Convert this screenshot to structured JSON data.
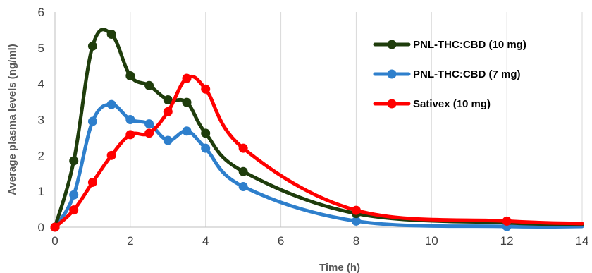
{
  "chart_data": {
    "type": "line",
    "title": "",
    "xlabel": "Time (h)",
    "ylabel": "Average plasma levels (ng/ml)",
    "xlim": [
      0,
      14
    ],
    "ylim": [
      0,
      6
    ],
    "xticks": [
      "0",
      "2",
      "4",
      "6",
      "8",
      "10",
      "12",
      "14"
    ],
    "yticks": [
      "0",
      "1",
      "2",
      "3",
      "4",
      "5",
      "6"
    ],
    "grid": "vertical",
    "legend": "top-right",
    "series": [
      {
        "name": "PNL-THC:CBD (10 mg)",
        "color": "#1f3d0c",
        "x": [
          0,
          0.5,
          1,
          1.5,
          2,
          2.5,
          3,
          3.5,
          4,
          5,
          8,
          12,
          14
        ],
        "y": [
          0,
          1.85,
          5.05,
          5.38,
          4.22,
          3.95,
          3.55,
          3.48,
          2.62,
          1.55,
          0.38,
          0.12,
          0.08
        ],
        "markers": [
          0,
          1,
          2,
          3,
          4,
          5,
          6,
          7,
          8,
          9,
          10
        ]
      },
      {
        "name": "PNL-THC:CBD (7 mg)",
        "color": "#2e7fcc",
        "x": [
          0,
          0.5,
          1,
          1.5,
          2,
          2.5,
          3,
          3.5,
          4,
          5,
          8,
          12,
          14
        ],
        "y": [
          0,
          0.9,
          2.95,
          3.42,
          3.0,
          2.88,
          2.42,
          2.68,
          2.2,
          1.13,
          0.17,
          0.02,
          0.02
        ],
        "markers": [
          0,
          1,
          2,
          3,
          4,
          5,
          6,
          7,
          8,
          9,
          10,
          11
        ]
      },
      {
        "name": "Sativex (10 mg)",
        "color": "#ff0000",
        "x": [
          0,
          0.5,
          1,
          1.5,
          2,
          2.5,
          3,
          3.5,
          4,
          5,
          8,
          12,
          14
        ],
        "y": [
          0,
          0.48,
          1.25,
          2.0,
          2.58,
          2.62,
          3.22,
          4.15,
          3.85,
          2.2,
          0.47,
          0.17,
          0.1
        ],
        "markers": [
          0,
          1,
          2,
          3,
          4,
          5,
          6,
          7,
          8,
          9,
          10,
          11
        ]
      }
    ]
  }
}
